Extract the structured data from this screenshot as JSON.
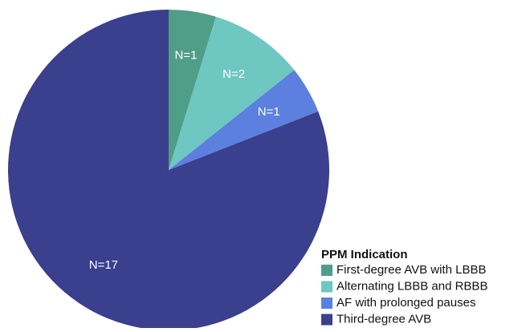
{
  "chart_data": {
    "type": "pie",
    "legend_title": "PPM Indication",
    "categories": [
      "First-degree AVB with LBBB",
      "Alternating LBBB and RBBB",
      "AF with prolonged pauses",
      "Third-degree AVB"
    ],
    "values": [
      1,
      2,
      1,
      17
    ],
    "value_labels": [
      "N=1",
      "N=2",
      "N=1",
      "N=17"
    ],
    "colors": [
      "#4f9e88",
      "#6ec7c1",
      "#5b80e0",
      "#3a3f8e"
    ],
    "legend": "lower right"
  }
}
